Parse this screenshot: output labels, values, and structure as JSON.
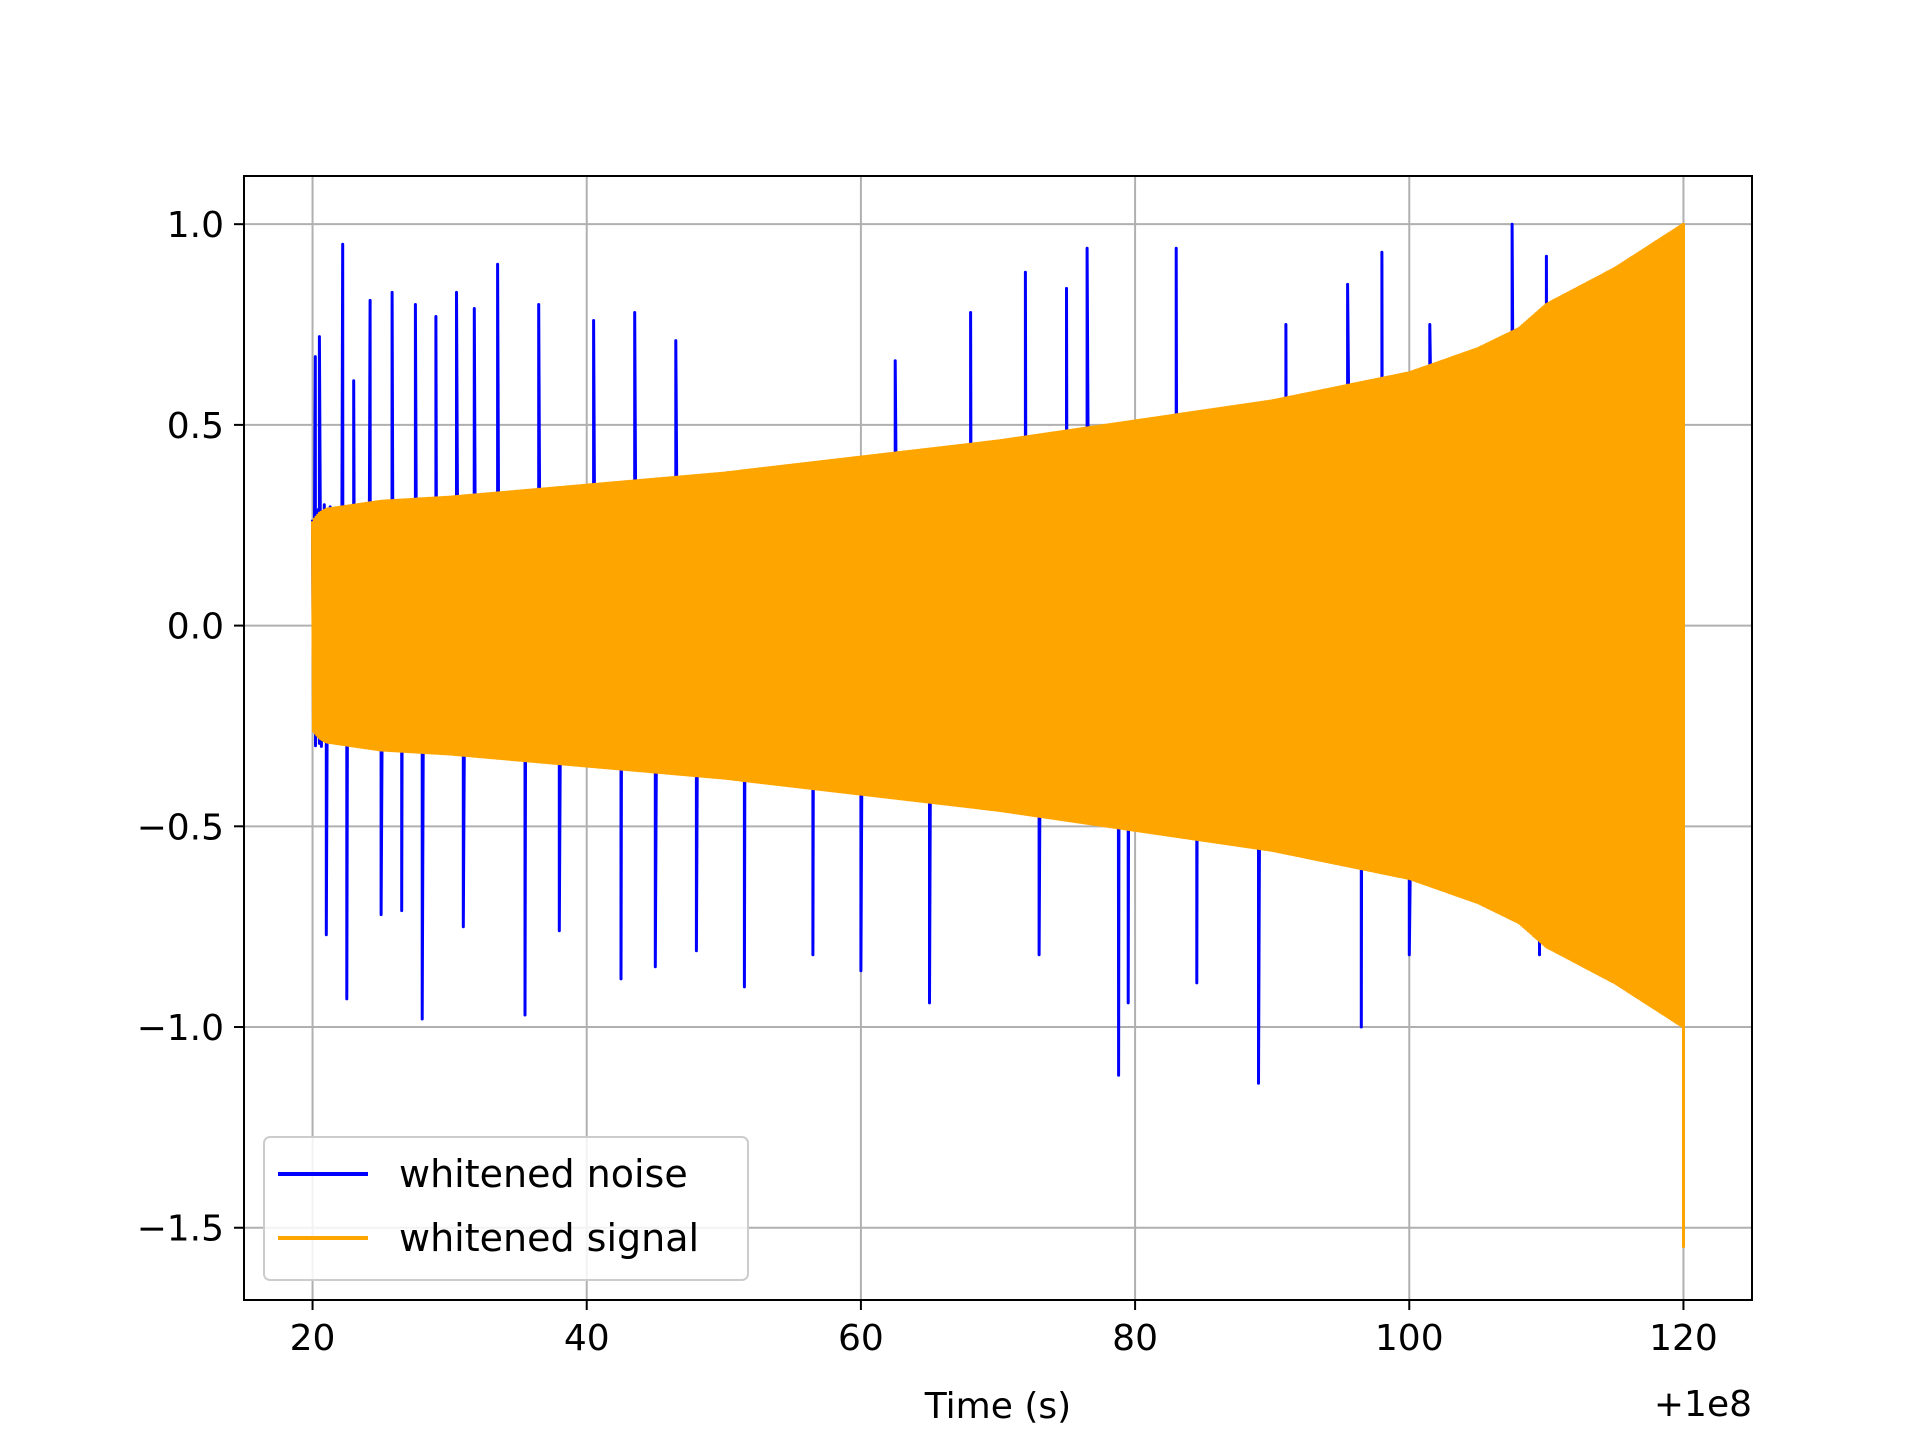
{
  "chart_data": {
    "type": "line",
    "title": "",
    "xlabel": "Time (s)",
    "ylabel": "",
    "x_offset_label": "+1e8",
    "xlim": [
      15,
      125
    ],
    "ylim": [
      -1.68,
      1.12
    ],
    "x_ticks": [
      20,
      40,
      60,
      80,
      100,
      120
    ],
    "x_tick_labels": [
      "20",
      "40",
      "60",
      "80",
      "100",
      "120"
    ],
    "y_ticks": [
      1.0,
      0.5,
      0.0,
      -0.5,
      -1.0,
      -1.5
    ],
    "y_tick_labels": [
      "1.0",
      "0.5",
      "0.0",
      "−0.5",
      "−1.0",
      "−1.5"
    ],
    "grid": true,
    "legend_position": "lower-left",
    "series": [
      {
        "name": "whitened noise",
        "color": "#0000ff",
        "x_range": [
          20,
          120
        ],
        "envelope": {
          "x": [
            20,
            30,
            40,
            50,
            60,
            70,
            80,
            90,
            100,
            107,
            110,
            120
          ],
          "upper": [
            0.3,
            0.32,
            0.35,
            0.38,
            0.42,
            0.46,
            0.5,
            0.55,
            0.62,
            0.66,
            0.7,
            0.4
          ],
          "lower": [
            -0.3,
            -0.32,
            -0.35,
            -0.38,
            -0.42,
            -0.46,
            -0.5,
            -0.55,
            -0.62,
            -0.66,
            -0.7,
            -0.4
          ]
        },
        "spikes": {
          "x": [
            20.2,
            20.5,
            21.0,
            22.2,
            22.5,
            23.0,
            24.2,
            25.0,
            25.8,
            26.5,
            27.5,
            28.0,
            29.0,
            30.5,
            31.0,
            31.8,
            33.5,
            35.5,
            36.5,
            38.0,
            40.5,
            42.5,
            43.5,
            45.0,
            46.5,
            48.0,
            51.5,
            56.5,
            60.0,
            62.5,
            65.0,
            68.0,
            72.0,
            73.0,
            75.0,
            76.5,
            78.8,
            79.5,
            83.0,
            84.5,
            89.0,
            91.0,
            95.5,
            96.5,
            98.0,
            100.0,
            101.5,
            107.5,
            109.5,
            110.0
          ],
          "y": [
            0.67,
            0.72,
            -0.77,
            0.95,
            -0.93,
            0.61,
            0.81,
            -0.72,
            0.83,
            -0.71,
            0.8,
            -0.98,
            0.77,
            0.83,
            -0.75,
            0.79,
            0.9,
            -0.97,
            0.8,
            -0.76,
            0.76,
            -0.88,
            0.78,
            -0.85,
            0.71,
            -0.81,
            -0.9,
            -0.82,
            -0.86,
            0.66,
            -0.94,
            0.78,
            0.88,
            -0.82,
            0.84,
            0.94,
            -1.12,
            -0.94,
            0.94,
            -0.89,
            -1.14,
            0.75,
            0.85,
            -1.0,
            0.93,
            -0.82,
            0.75,
            1.0,
            -0.82,
            0.92
          ]
        }
      },
      {
        "name": "whitened signal",
        "color": "#ffa500",
        "x_range": [
          20,
          120
        ],
        "envelope": {
          "x": [
            20,
            20.5,
            21,
            25,
            30,
            40,
            50,
            60,
            70,
            80,
            90,
            100,
            105,
            108,
            110,
            115,
            120
          ],
          "upper": [
            0.26,
            0.28,
            0.29,
            0.31,
            0.32,
            0.35,
            0.38,
            0.42,
            0.46,
            0.51,
            0.56,
            0.63,
            0.69,
            0.74,
            0.8,
            0.89,
            1.0
          ],
          "lower": [
            -0.26,
            -0.28,
            -0.29,
            -0.31,
            -0.32,
            -0.35,
            -0.38,
            -0.42,
            -0.46,
            -0.51,
            -0.56,
            -0.63,
            -0.69,
            -0.74,
            -0.8,
            -0.89,
            -1.0
          ]
        },
        "final_dip": -1.55
      }
    ]
  }
}
